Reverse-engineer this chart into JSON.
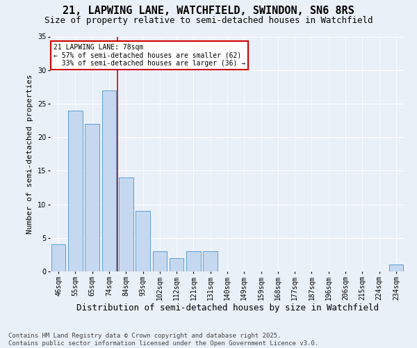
{
  "title1": "21, LAPWING LANE, WATCHFIELD, SWINDON, SN6 8RS",
  "title2": "Size of property relative to semi-detached houses in Watchfield",
  "xlabel": "Distribution of semi-detached houses by size in Watchfield",
  "ylabel": "Number of semi-detached properties",
  "categories": [
    "46sqm",
    "55sqm",
    "65sqm",
    "74sqm",
    "84sqm",
    "93sqm",
    "102sqm",
    "112sqm",
    "121sqm",
    "131sqm",
    "140sqm",
    "149sqm",
    "159sqm",
    "168sqm",
    "177sqm",
    "187sqm",
    "196sqm",
    "206sqm",
    "215sqm",
    "224sqm",
    "234sqm"
  ],
  "values": [
    4,
    24,
    22,
    27,
    14,
    9,
    3,
    2,
    3,
    3,
    0,
    0,
    0,
    0,
    0,
    0,
    0,
    0,
    0,
    0,
    1
  ],
  "bar_color": "#c5d8f0",
  "bar_edge_color": "#5a9fd4",
  "annotation_text": "21 LAPWING LANE: 78sqm\n← 57% of semi-detached houses are smaller (62)\n  33% of semi-detached houses are larger (36) →",
  "annotation_box_color": "#ffffff",
  "annotation_box_edge": "#cc0000",
  "annotation_text_color": "#000000",
  "vline_color": "#cc0000",
  "ylim": [
    0,
    35
  ],
  "yticks": [
    0,
    5,
    10,
    15,
    20,
    25,
    30,
    35
  ],
  "bg_color": "#eaf0f8",
  "plot_bg_color": "#eaf0f8",
  "footer": "Contains HM Land Registry data © Crown copyright and database right 2025.\nContains public sector information licensed under the Open Government Licence v3.0.",
  "title1_fontsize": 11,
  "title2_fontsize": 9,
  "xlabel_fontsize": 9,
  "ylabel_fontsize": 8,
  "tick_fontsize": 7,
  "footer_fontsize": 6.5
}
